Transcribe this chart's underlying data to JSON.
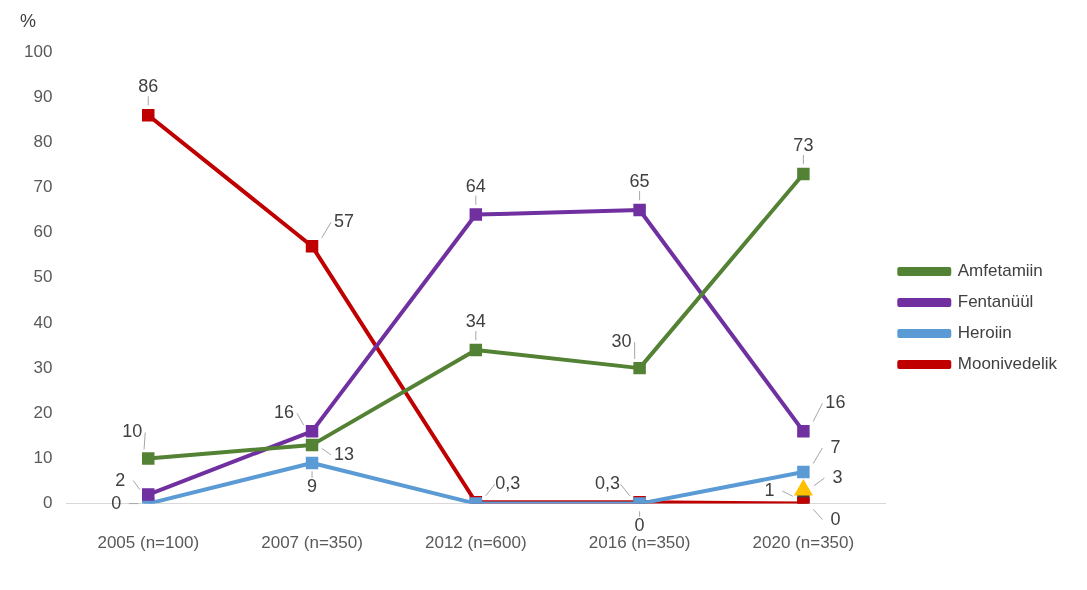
{
  "chart_data": {
    "type": "line",
    "ylabel": "%",
    "categories": [
      "2005 (n=100)",
      "2007 (n=350)",
      "2012 (n=600)",
      "2016 (n=350)",
      "2020 (n=350)"
    ],
    "ylim": [
      0,
      100
    ],
    "yticks": [
      0,
      10,
      20,
      30,
      40,
      50,
      60,
      70,
      80,
      90,
      100
    ],
    "grid": false,
    "legend": "right",
    "marker": "square",
    "line_style": "solid",
    "series": [
      {
        "name": "Amfetamiin",
        "color": "#548235",
        "values": [
          10,
          13,
          34,
          30,
          73
        ],
        "value_labels": [
          "10",
          "13",
          "34",
          "30",
          "73"
        ]
      },
      {
        "name": "Fentanüül",
        "color": "#7030a0",
        "values": [
          2,
          16,
          64,
          65,
          16
        ],
        "value_labels": [
          "2",
          "16",
          "64",
          "65",
          "16"
        ]
      },
      {
        "name": "Heroiin",
        "color": "#5b9bd5",
        "values": [
          0,
          9,
          0,
          0,
          7
        ],
        "value_labels": [
          "0",
          "9",
          null,
          "0",
          "7"
        ]
      },
      {
        "name": "Moonivedelik",
        "color": "#c00000",
        "values": [
          86,
          57,
          0.3,
          0.3,
          0
        ],
        "value_labels": [
          "86",
          "57",
          "0,3",
          "0,3",
          "0"
        ]
      },
      {
        "color": "#ffc000",
        "marker": "triangle",
        "values": [
          null,
          null,
          null,
          null,
          3
        ],
        "value_labels": [
          null,
          null,
          null,
          null,
          "3"
        ]
      },
      {
        "color": "#404040",
        "values": [
          null,
          null,
          null,
          null,
          1
        ],
        "value_labels": [
          null,
          null,
          null,
          null,
          "1"
        ]
      }
    ]
  }
}
